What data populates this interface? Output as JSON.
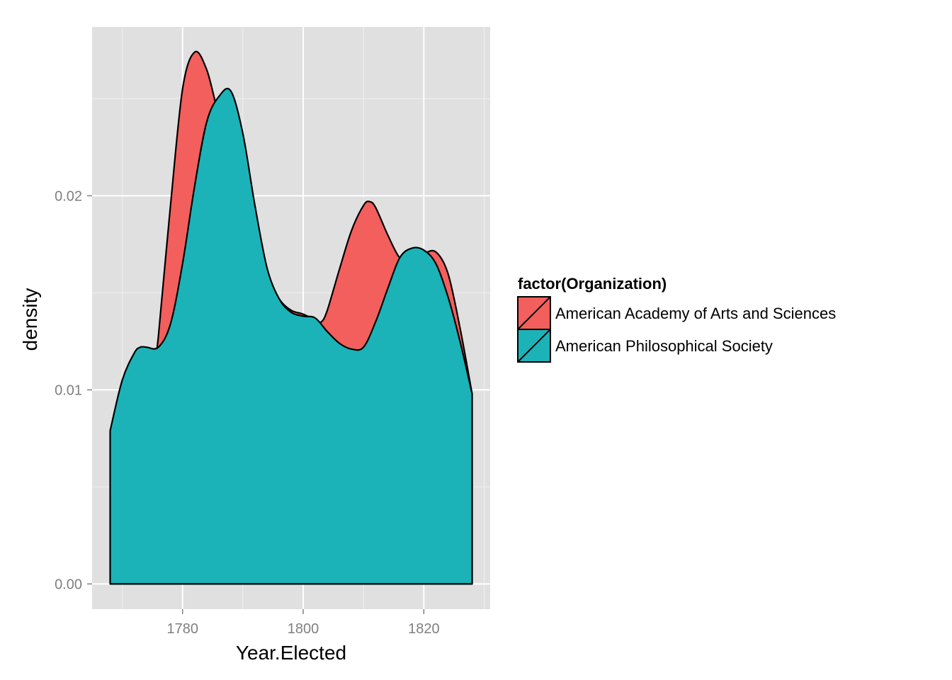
{
  "chart_data": {
    "type": "area",
    "subtype": "density",
    "title": "",
    "xlabel": "Year.Elected",
    "ylabel": "density",
    "xlim": [
      1765,
      1831
    ],
    "ylim": [
      -0.0013,
      0.0287
    ],
    "x_ticks": [
      1780,
      1800,
      1820
    ],
    "x_tick_labels": [
      "1780",
      "1800",
      "1820"
    ],
    "x_minor_ticks": [
      1770,
      1790,
      1810,
      1830
    ],
    "y_ticks": [
      0.0,
      0.01,
      0.02
    ],
    "y_tick_labels": [
      "0.00",
      "0.01",
      "0.02"
    ],
    "y_minor_ticks": [
      0.005,
      0.015,
      0.025
    ],
    "grid": true,
    "panel_background": "#e0e0e0",
    "legend": {
      "title": "factor(Organization)",
      "position": "right"
    },
    "series": [
      {
        "name": "American Academy of Arts and Sciences",
        "color": "#f25f5c",
        "x": [
          1775.6,
          1776,
          1778,
          1780,
          1782,
          1784,
          1786,
          1788,
          1790,
          1792,
          1794,
          1796,
          1798,
          1800,
          1802,
          1803,
          1804,
          1806,
          1808,
          1810,
          1811,
          1812,
          1814,
          1816,
          1818,
          1820,
          1822,
          1824,
          1826,
          1828
        ],
        "y": [
          0.0121,
          0.0128,
          0.0195,
          0.0255,
          0.0274,
          0.0265,
          0.0242,
          0.0228,
          0.021,
          0.0185,
          0.016,
          0.0147,
          0.0141,
          0.0139,
          0.0136,
          0.0135,
          0.0141,
          0.0162,
          0.0182,
          0.0195,
          0.0197,
          0.0194,
          0.018,
          0.0168,
          0.0165,
          0.017,
          0.0171,
          0.016,
          0.0132,
          0.0098
        ]
      },
      {
        "name": "American Philosophical Society",
        "color": "#1bb3b7",
        "x": [
          1768,
          1770,
          1772,
          1773,
          1774,
          1776,
          1778,
          1780,
          1782,
          1784,
          1786,
          1788,
          1790,
          1792,
          1794,
          1796,
          1798,
          1800,
          1802,
          1804,
          1806,
          1808,
          1810,
          1812,
          1814,
          1816,
          1818,
          1820,
          1822,
          1824,
          1826,
          1828
        ],
        "y": [
          0.0079,
          0.0105,
          0.0119,
          0.0122,
          0.0122,
          0.0122,
          0.0134,
          0.0165,
          0.0205,
          0.0238,
          0.0251,
          0.0254,
          0.0232,
          0.0195,
          0.0163,
          0.0147,
          0.014,
          0.0138,
          0.0137,
          0.013,
          0.0124,
          0.0121,
          0.0122,
          0.0135,
          0.0152,
          0.0168,
          0.0173,
          0.0172,
          0.0165,
          0.0148,
          0.0125,
          0.0098
        ]
      }
    ]
  }
}
